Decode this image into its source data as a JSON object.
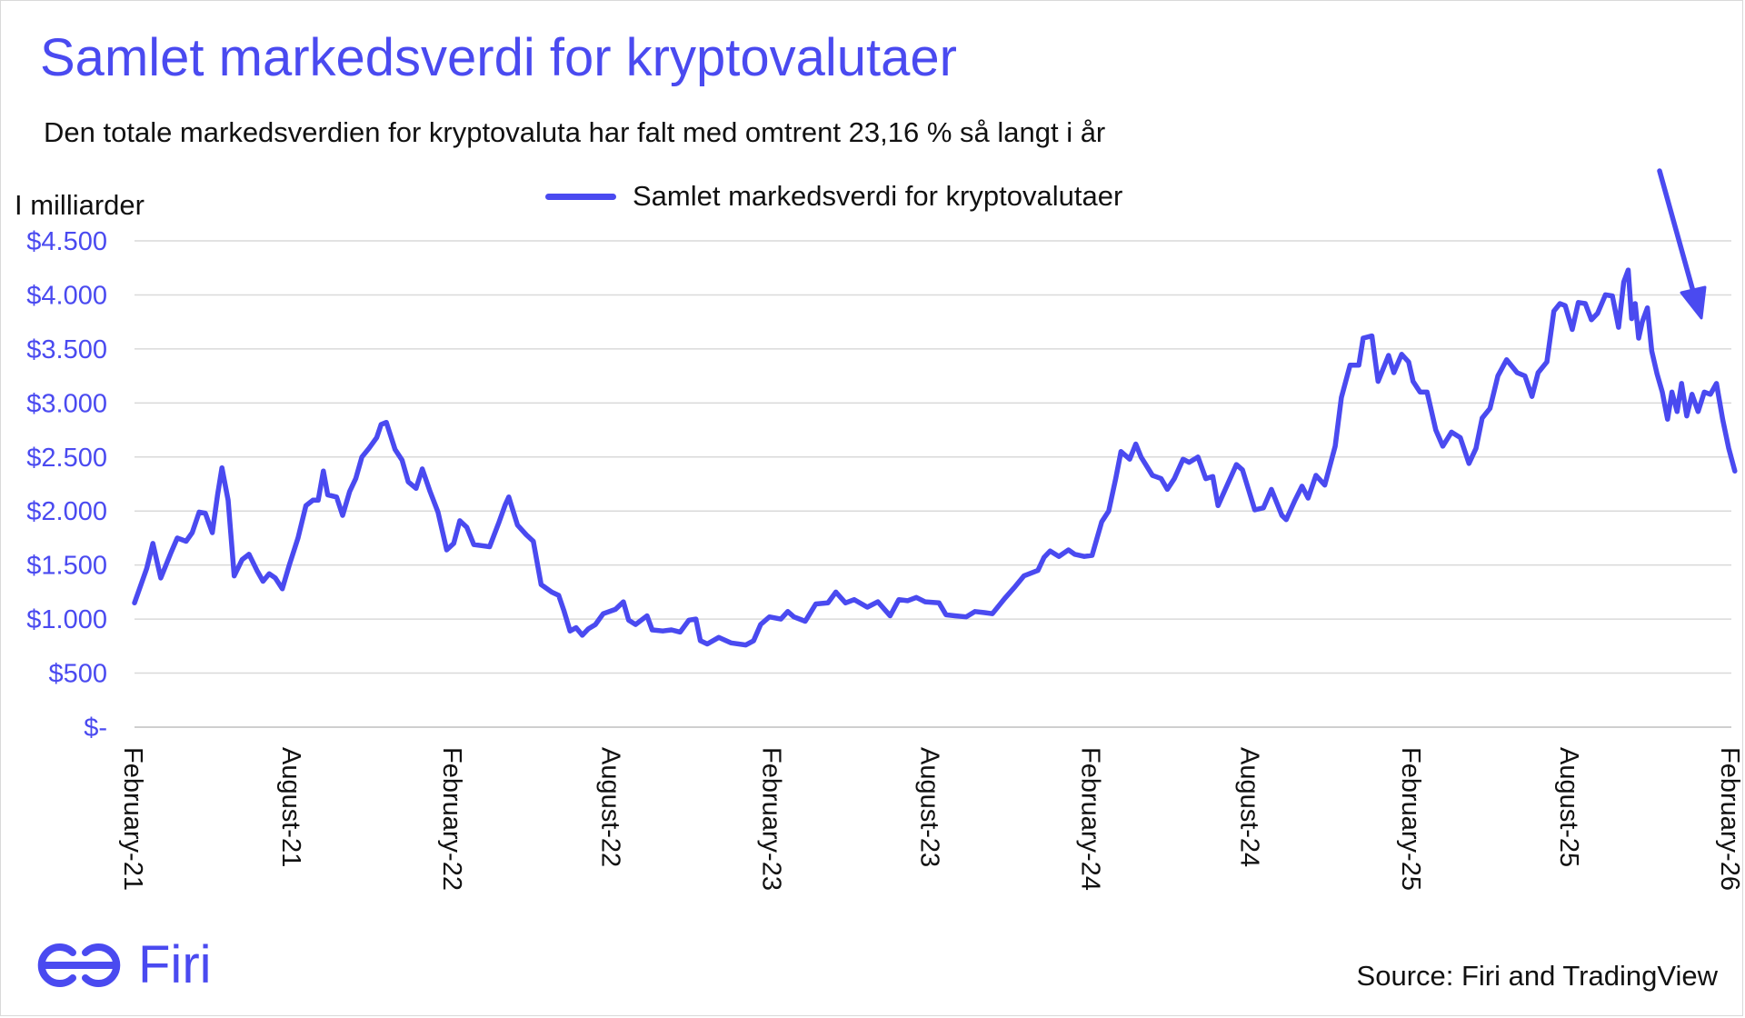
{
  "colors": {
    "accent": "#4a4af0",
    "grid": "#d9d9d9",
    "text": "#111111"
  },
  "header": {
    "title": "Samlet markedsverdi for kryptovalutaer",
    "subtitle": "Den totale markedsverdien for kryptovaluta har falt med omtrent 23,16 % så langt i år"
  },
  "footer": {
    "logo_text": "Firi",
    "logo_icon": "firi-logo-icon",
    "source": "Source: Firi and TradingView"
  },
  "annotation": {
    "icon": "arrow-down-icon"
  },
  "chart_data": {
    "type": "line",
    "title": "Samlet markedsverdi for kryptovalutaer",
    "ylabel": "I milliarder",
    "ylim": [
      0,
      4500
    ],
    "yticks": [
      0,
      500,
      1000,
      1500,
      2000,
      2500,
      3000,
      3500,
      4000,
      4500
    ],
    "ytick_labels": [
      "$-",
      "$500",
      "$1.000",
      "$1.500",
      "$2.000",
      "$2.500",
      "$3.000",
      "$3.500",
      "$4.000",
      "$4.500"
    ],
    "xlim": [
      "2021-02",
      "2026-02"
    ],
    "xticks": [
      "2021-02",
      "2021-08",
      "2022-02",
      "2022-08",
      "2023-02",
      "2023-08",
      "2024-02",
      "2024-08",
      "2025-02",
      "2025-08",
      "2026-02"
    ],
    "xtick_labels": [
      "February-21",
      "August-21",
      "February-22",
      "August-22",
      "February-23",
      "August-23",
      "February-24",
      "August-24",
      "February-25",
      "August-25",
      "February-26"
    ],
    "grid": "horizontal",
    "legend_position": "top",
    "series": [
      {
        "name": "Samlet markedsverdi for kryptovalutaer",
        "color": "#4a4af0",
        "points": [
          [
            "2021-02-01",
            1150
          ],
          [
            "2021-02-15",
            1470
          ],
          [
            "2021-02-22",
            1700
          ],
          [
            "2021-03-03",
            1380
          ],
          [
            "2021-03-15",
            1620
          ],
          [
            "2021-03-22",
            1750
          ],
          [
            "2021-04-01",
            1720
          ],
          [
            "2021-04-08",
            1800
          ],
          [
            "2021-04-16",
            1990
          ],
          [
            "2021-04-23",
            1980
          ],
          [
            "2021-05-01",
            1800
          ],
          [
            "2021-05-07",
            2150
          ],
          [
            "2021-05-12",
            2400
          ],
          [
            "2021-05-19",
            2100
          ],
          [
            "2021-05-26",
            1400
          ],
          [
            "2021-06-04",
            1550
          ],
          [
            "2021-06-12",
            1600
          ],
          [
            "2021-06-21",
            1450
          ],
          [
            "2021-06-28",
            1350
          ],
          [
            "2021-07-05",
            1420
          ],
          [
            "2021-07-12",
            1380
          ],
          [
            "2021-07-20",
            1280
          ],
          [
            "2021-07-28",
            1500
          ],
          [
            "2021-08-07",
            1750
          ],
          [
            "2021-08-16",
            2050
          ],
          [
            "2021-08-24",
            2100
          ],
          [
            "2021-08-30",
            2100
          ],
          [
            "2021-09-05",
            2370
          ],
          [
            "2021-09-10",
            2150
          ],
          [
            "2021-09-20",
            2130
          ],
          [
            "2021-09-27",
            1960
          ],
          [
            "2021-10-05",
            2180
          ],
          [
            "2021-10-12",
            2300
          ],
          [
            "2021-10-19",
            2500
          ],
          [
            "2021-10-27",
            2580
          ],
          [
            "2021-11-05",
            2680
          ],
          [
            "2021-11-10",
            2800
          ],
          [
            "2021-11-16",
            2820
          ],
          [
            "2021-11-26",
            2570
          ],
          [
            "2021-12-04",
            2470
          ],
          [
            "2021-12-11",
            2270
          ],
          [
            "2021-12-20",
            2210
          ],
          [
            "2021-12-27",
            2390
          ],
          [
            "2022-01-05",
            2180
          ],
          [
            "2022-01-14",
            1990
          ],
          [
            "2022-01-24",
            1640
          ],
          [
            "2022-02-01",
            1700
          ],
          [
            "2022-02-08",
            1910
          ],
          [
            "2022-02-16",
            1850
          ],
          [
            "2022-02-24",
            1690
          ],
          [
            "2022-03-05",
            1680
          ],
          [
            "2022-03-14",
            1670
          ],
          [
            "2022-03-25",
            1900
          ],
          [
            "2022-04-01",
            2060
          ],
          [
            "2022-04-05",
            2130
          ],
          [
            "2022-04-15",
            1870
          ],
          [
            "2022-04-25",
            1780
          ],
          [
            "2022-05-03",
            1720
          ],
          [
            "2022-05-12",
            1320
          ],
          [
            "2022-05-24",
            1250
          ],
          [
            "2022-06-01",
            1220
          ],
          [
            "2022-06-07",
            1080
          ],
          [
            "2022-06-14",
            890
          ],
          [
            "2022-06-21",
            920
          ],
          [
            "2022-06-28",
            850
          ],
          [
            "2022-07-05",
            910
          ],
          [
            "2022-07-13",
            950
          ],
          [
            "2022-07-22",
            1050
          ],
          [
            "2022-08-05",
            1090
          ],
          [
            "2022-08-14",
            1160
          ],
          [
            "2022-08-20",
            990
          ],
          [
            "2022-08-28",
            950
          ],
          [
            "2022-09-10",
            1030
          ],
          [
            "2022-09-16",
            900
          ],
          [
            "2022-09-28",
            890
          ],
          [
            "2022-10-08",
            900
          ],
          [
            "2022-10-18",
            880
          ],
          [
            "2022-10-28",
            990
          ],
          [
            "2022-11-05",
            1000
          ],
          [
            "2022-11-10",
            800
          ],
          [
            "2022-11-18",
            770
          ],
          [
            "2022-12-01",
            830
          ],
          [
            "2022-12-15",
            780
          ],
          [
            "2023-01-01",
            760
          ],
          [
            "2023-01-10",
            800
          ],
          [
            "2023-01-18",
            950
          ],
          [
            "2023-01-28",
            1020
          ],
          [
            "2023-02-10",
            1000
          ],
          [
            "2023-02-18",
            1070
          ],
          [
            "2023-02-25",
            1020
          ],
          [
            "2023-03-10",
            980
          ],
          [
            "2023-03-22",
            1140
          ],
          [
            "2023-04-05",
            1150
          ],
          [
            "2023-04-14",
            1250
          ],
          [
            "2023-04-25",
            1150
          ],
          [
            "2023-05-05",
            1180
          ],
          [
            "2023-05-20",
            1110
          ],
          [
            "2023-06-01",
            1160
          ],
          [
            "2023-06-15",
            1030
          ],
          [
            "2023-06-25",
            1180
          ],
          [
            "2023-07-05",
            1170
          ],
          [
            "2023-07-15",
            1200
          ],
          [
            "2023-07-25",
            1160
          ],
          [
            "2023-08-10",
            1150
          ],
          [
            "2023-08-18",
            1040
          ],
          [
            "2023-08-28",
            1030
          ],
          [
            "2023-09-10",
            1020
          ],
          [
            "2023-09-20",
            1070
          ],
          [
            "2023-10-01",
            1060
          ],
          [
            "2023-10-10",
            1050
          ],
          [
            "2023-10-24",
            1190
          ],
          [
            "2023-11-05",
            1300
          ],
          [
            "2023-11-15",
            1400
          ],
          [
            "2023-12-01",
            1450
          ],
          [
            "2023-12-08",
            1570
          ],
          [
            "2023-12-15",
            1630
          ],
          [
            "2023-12-25",
            1580
          ],
          [
            "2024-01-05",
            1640
          ],
          [
            "2024-01-12",
            1600
          ],
          [
            "2024-01-23",
            1580
          ],
          [
            "2024-02-01",
            1590
          ],
          [
            "2024-02-12",
            1900
          ],
          [
            "2024-02-20",
            2000
          ],
          [
            "2024-02-28",
            2300
          ],
          [
            "2024-03-05",
            2550
          ],
          [
            "2024-03-15",
            2480
          ],
          [
            "2024-03-22",
            2620
          ],
          [
            "2024-03-28",
            2500
          ],
          [
            "2024-04-10",
            2330
          ],
          [
            "2024-04-20",
            2300
          ],
          [
            "2024-04-27",
            2200
          ],
          [
            "2024-05-05",
            2300
          ],
          [
            "2024-05-15",
            2480
          ],
          [
            "2024-05-22",
            2450
          ],
          [
            "2024-06-01",
            2500
          ],
          [
            "2024-06-10",
            2300
          ],
          [
            "2024-06-18",
            2320
          ],
          [
            "2024-06-24",
            2050
          ],
          [
            "2024-07-05",
            2250
          ],
          [
            "2024-07-15",
            2430
          ],
          [
            "2024-07-22",
            2380
          ],
          [
            "2024-08-05",
            2010
          ],
          [
            "2024-08-15",
            2030
          ],
          [
            "2024-08-24",
            2200
          ],
          [
            "2024-09-05",
            1960
          ],
          [
            "2024-09-10",
            1920
          ],
          [
            "2024-09-20",
            2100
          ],
          [
            "2024-09-28",
            2230
          ],
          [
            "2024-10-05",
            2120
          ],
          [
            "2024-10-14",
            2330
          ],
          [
            "2024-10-24",
            2240
          ],
          [
            "2024-11-05",
            2600
          ],
          [
            "2024-11-12",
            3050
          ],
          [
            "2024-11-22",
            3350
          ],
          [
            "2024-12-02",
            3350
          ],
          [
            "2024-12-07",
            3600
          ],
          [
            "2024-12-17",
            3620
          ],
          [
            "2024-12-24",
            3200
          ],
          [
            "2025-01-05",
            3440
          ],
          [
            "2025-01-11",
            3280
          ],
          [
            "2025-01-20",
            3450
          ],
          [
            "2025-01-28",
            3380
          ],
          [
            "2025-02-02",
            3200
          ],
          [
            "2025-02-10",
            3100
          ],
          [
            "2025-02-18",
            3100
          ],
          [
            "2025-02-28",
            2750
          ],
          [
            "2025-03-08",
            2600
          ],
          [
            "2025-03-18",
            2730
          ],
          [
            "2025-03-28",
            2680
          ],
          [
            "2025-04-07",
            2440
          ],
          [
            "2025-04-15",
            2580
          ],
          [
            "2025-04-22",
            2860
          ],
          [
            "2025-05-01",
            2950
          ],
          [
            "2025-05-10",
            3250
          ],
          [
            "2025-05-20",
            3400
          ],
          [
            "2025-06-01",
            3280
          ],
          [
            "2025-06-10",
            3250
          ],
          [
            "2025-06-18",
            3060
          ],
          [
            "2025-06-25",
            3280
          ],
          [
            "2025-07-05",
            3380
          ],
          [
            "2025-07-13",
            3850
          ],
          [
            "2025-07-20",
            3920
          ],
          [
            "2025-07-26",
            3900
          ],
          [
            "2025-08-03",
            3680
          ],
          [
            "2025-08-10",
            3930
          ],
          [
            "2025-08-18",
            3920
          ],
          [
            "2025-08-25",
            3770
          ],
          [
            "2025-09-01",
            3830
          ],
          [
            "2025-09-10",
            4000
          ],
          [
            "2025-09-18",
            3990
          ],
          [
            "2025-09-25",
            3700
          ],
          [
            "2025-10-01",
            4120
          ],
          [
            "2025-10-06",
            4230
          ],
          [
            "2025-10-10",
            3780
          ],
          [
            "2025-10-14",
            3920
          ],
          [
            "2025-10-18",
            3600
          ],
          [
            "2025-10-22",
            3750
          ],
          [
            "2025-10-28",
            3880
          ],
          [
            "2025-11-02",
            3480
          ],
          [
            "2025-11-08",
            3270
          ],
          [
            "2025-11-14",
            3100
          ],
          [
            "2025-11-20",
            2850
          ],
          [
            "2025-11-25",
            3100
          ],
          [
            "2025-12-01",
            2920
          ],
          [
            "2025-12-06",
            3180
          ],
          [
            "2025-12-12",
            2880
          ],
          [
            "2025-12-18",
            3080
          ],
          [
            "2025-12-25",
            2920
          ],
          [
            "2026-01-01",
            3100
          ],
          [
            "2026-01-08",
            3080
          ],
          [
            "2026-01-15",
            3180
          ],
          [
            "2026-01-22",
            2850
          ],
          [
            "2026-01-29",
            2580
          ],
          [
            "2026-02-05",
            2370
          ]
        ]
      }
    ]
  }
}
